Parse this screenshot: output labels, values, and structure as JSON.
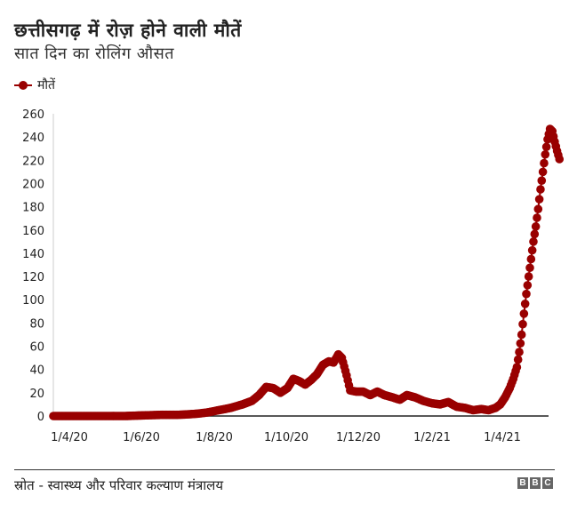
{
  "header": {
    "title": "छत्तीसगढ़ में रोज़ होने वाली मौतें",
    "subtitle": "सात दिन का रोलिंग औसत"
  },
  "legend": {
    "label": "मौतें",
    "color": "#990000"
  },
  "footer": {
    "source": "स्रोत - स्वास्थ्य और परिवार कल्याण मंत्रालय",
    "logo_letters": [
      "B",
      "B",
      "C"
    ]
  },
  "chart_data": {
    "type": "line",
    "title": "छत्तीसगढ़ में रोज़ होने वाली मौतें",
    "subtitle": "सात दिन का रोलिंग औसत",
    "xlabel": "",
    "ylabel": "",
    "ylim": [
      0,
      260
    ],
    "yticks": [
      0,
      20,
      40,
      60,
      80,
      100,
      120,
      140,
      160,
      180,
      200,
      220,
      240,
      260
    ],
    "xticks": [
      "1/4/20",
      "1/6/20",
      "1/8/20",
      "1/10/20",
      "1/12/20",
      "1/2/21",
      "1/4/21"
    ],
    "grid": false,
    "legend_position": "top-left",
    "series": [
      {
        "name": "मौतें",
        "color": "#990000",
        "marker": "circle",
        "points": [
          {
            "day": 0,
            "value": 0
          },
          {
            "day": 15,
            "value": 0
          },
          {
            "day": 30,
            "value": 0
          },
          {
            "day": 45,
            "value": 0
          },
          {
            "day": 61,
            "value": 0
          },
          {
            "day": 75,
            "value": 0.5
          },
          {
            "day": 92,
            "value": 1
          },
          {
            "day": 105,
            "value": 1
          },
          {
            "day": 115,
            "value": 1.5
          },
          {
            "day": 122,
            "value": 2
          },
          {
            "day": 130,
            "value": 3
          },
          {
            "day": 140,
            "value": 5
          },
          {
            "day": 150,
            "value": 7
          },
          {
            "day": 160,
            "value": 10
          },
          {
            "day": 168,
            "value": 13
          },
          {
            "day": 174,
            "value": 18
          },
          {
            "day": 180,
            "value": 25
          },
          {
            "day": 186,
            "value": 24
          },
          {
            "day": 192,
            "value": 20
          },
          {
            "day": 198,
            "value": 24
          },
          {
            "day": 203,
            "value": 32
          },
          {
            "day": 208,
            "value": 30
          },
          {
            "day": 213,
            "value": 27
          },
          {
            "day": 218,
            "value": 31
          },
          {
            "day": 223,
            "value": 36
          },
          {
            "day": 228,
            "value": 44
          },
          {
            "day": 233,
            "value": 47
          },
          {
            "day": 237,
            "value": 46
          },
          {
            "day": 241,
            "value": 53
          },
          {
            "day": 244,
            "value": 50
          },
          {
            "day": 248,
            "value": 35
          },
          {
            "day": 251,
            "value": 22
          },
          {
            "day": 256,
            "value": 21
          },
          {
            "day": 262,
            "value": 21
          },
          {
            "day": 268,
            "value": 18
          },
          {
            "day": 274,
            "value": 21
          },
          {
            "day": 280,
            "value": 18
          },
          {
            "day": 287,
            "value": 16
          },
          {
            "day": 293,
            "value": 14
          },
          {
            "day": 299,
            "value": 18
          },
          {
            "day": 306,
            "value": 16
          },
          {
            "day": 313,
            "value": 13
          },
          {
            "day": 320,
            "value": 11
          },
          {
            "day": 327,
            "value": 10
          },
          {
            "day": 334,
            "value": 12
          },
          {
            "day": 341,
            "value": 8
          },
          {
            "day": 348,
            "value": 7
          },
          {
            "day": 355,
            "value": 5
          },
          {
            "day": 362,
            "value": 6
          },
          {
            "day": 368,
            "value": 5
          },
          {
            "day": 374,
            "value": 7
          },
          {
            "day": 378,
            "value": 10
          },
          {
            "day": 382,
            "value": 16
          },
          {
            "day": 386,
            "value": 24
          },
          {
            "day": 389,
            "value": 32
          },
          {
            "day": 392,
            "value": 42
          },
          {
            "day": 394,
            "value": 55
          },
          {
            "day": 396,
            "value": 70
          },
          {
            "day": 398,
            "value": 88
          },
          {
            "day": 400,
            "value": 105
          },
          {
            "day": 402,
            "value": 120
          },
          {
            "day": 404,
            "value": 135
          },
          {
            "day": 406,
            "value": 150
          },
          {
            "day": 408,
            "value": 163
          },
          {
            "day": 410,
            "value": 178
          },
          {
            "day": 412,
            "value": 195
          },
          {
            "day": 414,
            "value": 210
          },
          {
            "day": 416,
            "value": 225
          },
          {
            "day": 418,
            "value": 238
          },
          {
            "day": 420,
            "value": 247
          },
          {
            "day": 422,
            "value": 245
          },
          {
            "day": 424,
            "value": 236
          },
          {
            "day": 426,
            "value": 228
          },
          {
            "day": 428,
            "value": 221
          }
        ]
      }
    ]
  }
}
